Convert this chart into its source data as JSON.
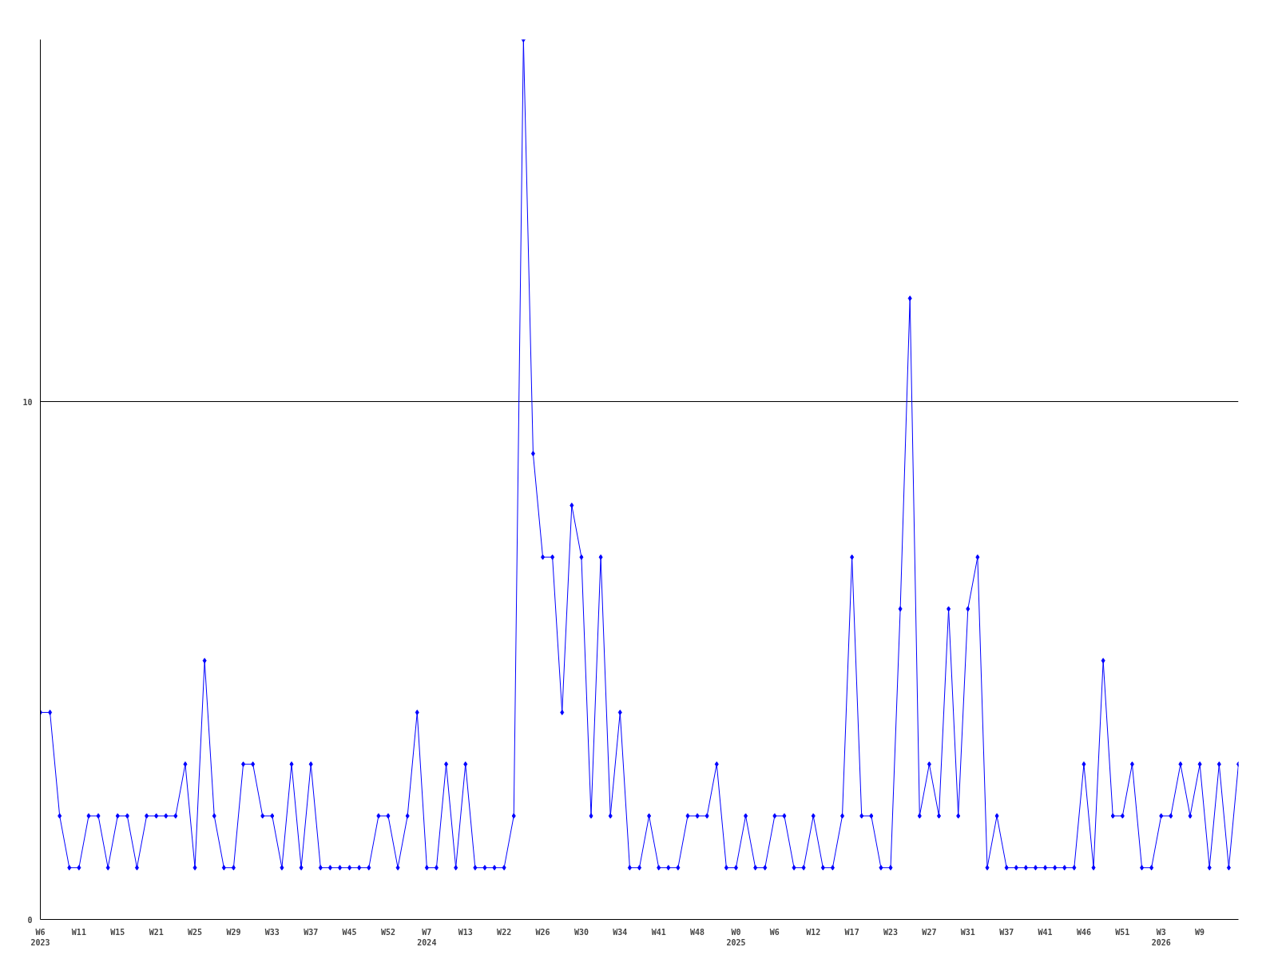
{
  "chart_data": {
    "type": "line",
    "categories": [
      "W6\n2023",
      null,
      null,
      null,
      "W11",
      null,
      null,
      null,
      "W15",
      null,
      null,
      null,
      "W21",
      null,
      null,
      null,
      "W25",
      null,
      null,
      null,
      "W29",
      null,
      null,
      null,
      "W33",
      null,
      null,
      null,
      "W37",
      null,
      null,
      null,
      "W45",
      null,
      null,
      null,
      "W52",
      null,
      null,
      null,
      "W7\n2024",
      null,
      null,
      null,
      "W13",
      null,
      null,
      null,
      "W22",
      null,
      null,
      null,
      "W26",
      null,
      null,
      null,
      "W30",
      null,
      null,
      null,
      "W34",
      null,
      null,
      null,
      "W41",
      null,
      null,
      null,
      "W48",
      null,
      null,
      null,
      "W0\n2025",
      null,
      null,
      null,
      "W6",
      null,
      null,
      null,
      "W12",
      null,
      null,
      null,
      "W17",
      null,
      null,
      null,
      "W23",
      null,
      null,
      null,
      "W27",
      null,
      null,
      null,
      "W31",
      null,
      null,
      null,
      "W37",
      null,
      null,
      null,
      "W41",
      null,
      null,
      null,
      "W46",
      null,
      null,
      null,
      "W51",
      null,
      null,
      null,
      "W3\n2026",
      null,
      null,
      null,
      "W9",
      null,
      null,
      null,
      null
    ],
    "series": [
      {
        "color": "#0000ff",
        "values": [
          4,
          4,
          2,
          1,
          1,
          2,
          2,
          1,
          2,
          2,
          1,
          2,
          2,
          2,
          2,
          3,
          1,
          5,
          2,
          1,
          1,
          3,
          3,
          2,
          2,
          1,
          3,
          1,
          3,
          1,
          1,
          1,
          1,
          1,
          1,
          2,
          2,
          1,
          2,
          4,
          1,
          1,
          3,
          1,
          3,
          1,
          1,
          1,
          1,
          2,
          17,
          9,
          7,
          7,
          4,
          8,
          7,
          2,
          7,
          2,
          4,
          1,
          1,
          2,
          1,
          1,
          1,
          2,
          2,
          2,
          3,
          1,
          1,
          2,
          1,
          1,
          2,
          2,
          1,
          1,
          2,
          1,
          1,
          2,
          7,
          2,
          2,
          1,
          1,
          6,
          12,
          2,
          3,
          2,
          6,
          2,
          6,
          7,
          1,
          2,
          1,
          1,
          1,
          1,
          1,
          1,
          1,
          1,
          3,
          1,
          5,
          2,
          2,
          3,
          1,
          1,
          2,
          2,
          3,
          2,
          3,
          1,
          3,
          1,
          3
        ]
      }
    ],
    "ylim": [
      0,
      17
    ],
    "yticks": [
      0,
      10
    ],
    "grid": "y",
    "marker": "diamond",
    "line_style": "solid"
  }
}
